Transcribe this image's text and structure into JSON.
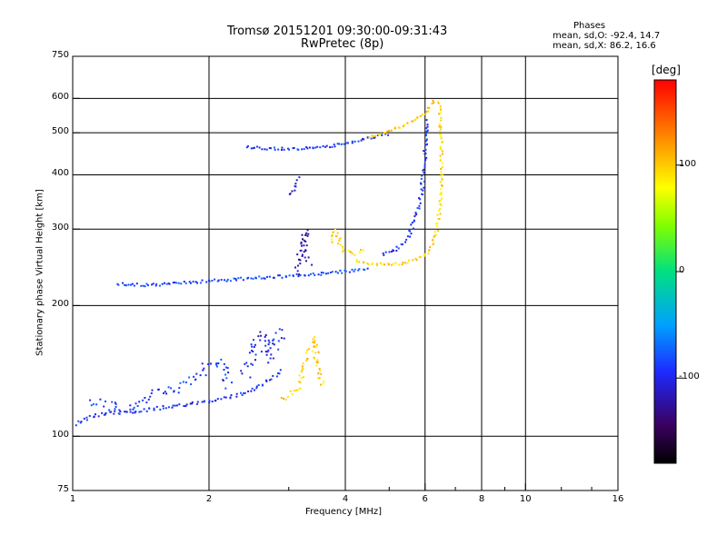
{
  "header": {
    "title_line1": "Tromsø 20151201 09:30:00-09:31:43",
    "title_line2": "RwPretec (8p)"
  },
  "phases_box": {
    "heading": "Phases",
    "line_o": "mean, sd,O: -92.4, 14.7",
    "line_x": "mean, sd,X:  86.2, 16.6"
  },
  "colorbar": {
    "unit": "[deg]",
    "ticks": [
      {
        "value": 100,
        "label": "100"
      },
      {
        "value": 0,
        "label": "0"
      },
      {
        "value": -100,
        "label": "-100"
      }
    ],
    "range": [
      -180,
      180
    ]
  },
  "chart_data": {
    "type": "scatter",
    "title": "Tromsø 20151201 09:30:00-09:31:43",
    "subtitle": "RwPretec (8p)",
    "xlabel": "Frequency [MHz]",
    "ylabel": "Stationary phase Virtual Height [km]",
    "x_scale": "log",
    "y_scale": "log",
    "xlim": [
      1,
      16
    ],
    "ylim": [
      75,
      750
    ],
    "x_ticks": [
      {
        "value": 1,
        "label": "1"
      },
      {
        "value": 2,
        "label": "2"
      },
      {
        "value": 4,
        "label": "4"
      },
      {
        "value": 6,
        "label": "6"
      },
      {
        "value": 8,
        "label": "8"
      },
      {
        "value": 10,
        "label": "10"
      },
      {
        "value": 16,
        "label": "16"
      }
    ],
    "x_gridlines": [
      2,
      4,
      6,
      8,
      10
    ],
    "x_minor_ticks": [
      3,
      5,
      7,
      9,
      12,
      14
    ],
    "y_ticks": [
      {
        "value": 75,
        "label": "75"
      },
      {
        "value": 100,
        "label": "100"
      },
      {
        "value": 200,
        "label": "200"
      },
      {
        "value": 300,
        "label": "300"
      },
      {
        "value": 400,
        "label": "400"
      },
      {
        "value": 500,
        "label": "500"
      },
      {
        "value": 600,
        "label": "600"
      },
      {
        "value": 750,
        "label": "750"
      }
    ],
    "y_gridlines": [
      100,
      200,
      300,
      400,
      500,
      600
    ],
    "grid": true,
    "colorbar": "phase [deg], rainbow from -180 (black) to 180 (red)",
    "traces": [
      {
        "name": "",
        "phase": -95,
        "spread": 4,
        "points": [
          [
            1.0,
            107
          ],
          [
            1.1,
            112
          ],
          [
            1.2,
            114
          ],
          [
            1.4,
            115
          ],
          [
            1.6,
            117
          ],
          [
            1.8,
            119
          ],
          [
            2.0,
            121
          ],
          [
            2.2,
            124
          ],
          [
            2.4,
            127
          ],
          [
            2.6,
            132
          ],
          [
            2.8,
            138
          ],
          [
            2.9,
            143
          ]
        ]
      },
      {
        "name": "",
        "phase": -85,
        "spread": 3,
        "points": [
          [
            1.25,
            226
          ],
          [
            1.4,
            224
          ],
          [
            1.6,
            225
          ],
          [
            1.8,
            227
          ],
          [
            2.0,
            229
          ],
          [
            2.3,
            231
          ],
          [
            2.6,
            233
          ],
          [
            3.0,
            235
          ],
          [
            3.5,
            238
          ],
          [
            4.0,
            241
          ],
          [
            4.5,
            245
          ]
        ]
      },
      {
        "name": "",
        "phase": -90,
        "spread": 3,
        "points": [
          [
            2.4,
            466
          ],
          [
            2.7,
            462
          ],
          [
            3.0,
            461
          ],
          [
            3.4,
            463
          ],
          [
            3.8,
            470
          ],
          [
            4.2,
            480
          ],
          [
            4.6,
            490
          ],
          [
            5.0,
            500
          ]
        ]
      },
      {
        "name": "",
        "phase": -95,
        "spread": 4,
        "points": [
          [
            4.8,
            262
          ],
          [
            5.2,
            272
          ],
          [
            5.5,
            290
          ],
          [
            5.7,
            320
          ],
          [
            5.85,
            360
          ],
          [
            5.95,
            420
          ],
          [
            6.0,
            480
          ],
          [
            6.05,
            540
          ]
        ]
      },
      {
        "name": "",
        "phase": 95,
        "spread": 3,
        "points": [
          [
            4.2,
            256
          ],
          [
            4.6,
            250
          ],
          [
            5.0,
            250
          ],
          [
            5.4,
            252
          ],
          [
            5.8,
            258
          ],
          [
            6.1,
            268
          ],
          [
            6.3,
            290
          ],
          [
            6.45,
            340
          ],
          [
            6.5,
            400
          ],
          [
            6.5,
            470
          ],
          [
            6.45,
            540
          ],
          [
            6.4,
            600
          ]
        ]
      },
      {
        "name": "",
        "phase": 100,
        "spread": 3,
        "points": [
          [
            4.5,
            490
          ],
          [
            5.0,
            505
          ],
          [
            5.5,
            530
          ],
          [
            6.0,
            560
          ],
          [
            6.3,
            600
          ]
        ]
      },
      {
        "name": "",
        "phase": 95,
        "spread": 6,
        "points": [
          [
            3.7,
            280
          ],
          [
            3.8,
            300
          ],
          [
            3.9,
            270
          ],
          [
            4.2,
            265
          ],
          [
            4.4,
            270
          ]
        ]
      },
      {
        "name": "",
        "phase": 100,
        "spread": 6,
        "points": [
          [
            2.9,
            122
          ],
          [
            3.1,
            128
          ],
          [
            3.2,
            140
          ],
          [
            3.3,
            155
          ],
          [
            3.4,
            170
          ],
          [
            3.5,
            135
          ],
          [
            3.6,
            130
          ]
        ]
      },
      {
        "name": "",
        "phase": -100,
        "spread": 12,
        "points": [
          [
            2.4,
            140
          ],
          [
            2.5,
            160
          ],
          [
            2.6,
            175
          ],
          [
            2.7,
            150
          ],
          [
            2.8,
            165
          ],
          [
            2.9,
            180
          ]
        ]
      },
      {
        "name": "",
        "phase": -120,
        "spread": 8,
        "points": [
          [
            3.1,
            240
          ],
          [
            3.15,
            260
          ],
          [
            3.2,
            280
          ],
          [
            3.25,
            300
          ],
          [
            3.3,
            250
          ]
        ]
      },
      {
        "name": "",
        "phase": -90,
        "spread": 12,
        "points": [
          [
            1.1,
            120
          ],
          [
            1.3,
            115
          ],
          [
            1.5,
            125
          ],
          [
            1.7,
            130
          ],
          [
            1.9,
            140
          ],
          [
            2.1,
            150
          ],
          [
            2.2,
            130
          ]
        ]
      },
      {
        "name": "",
        "phase": -110,
        "spread": 3,
        "points": [
          [
            3.0,
            360
          ],
          [
            3.1,
            380
          ],
          [
            3.15,
            400
          ]
        ]
      }
    ]
  }
}
